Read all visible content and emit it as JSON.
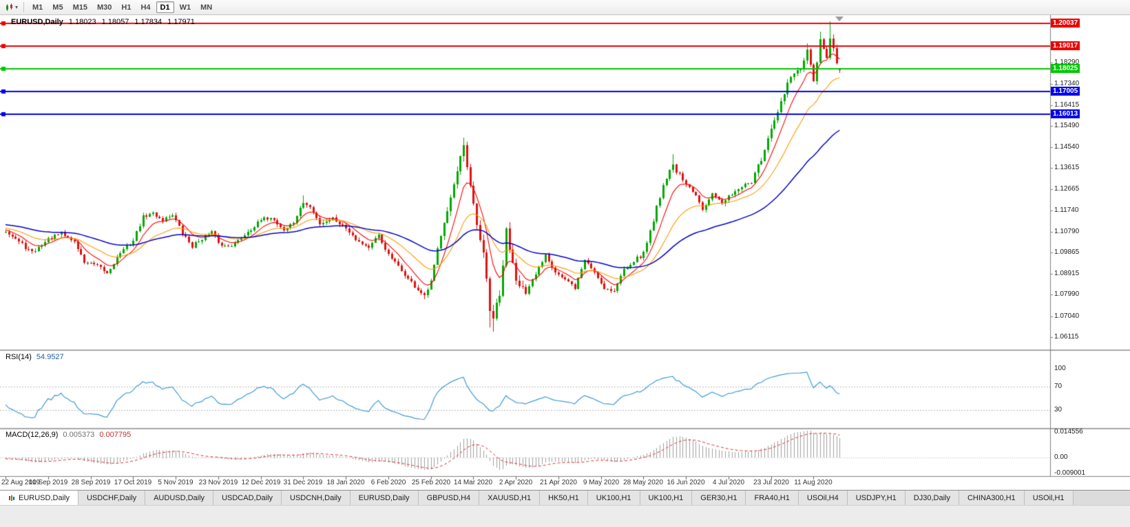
{
  "toolbar": {
    "timeframes": [
      "M1",
      "M5",
      "M15",
      "M30",
      "H1",
      "H4",
      "D1",
      "W1",
      "MN"
    ],
    "selected_timeframe": "D1",
    "icons": {
      "chart_type": "candlestick-chart",
      "caret": "▾"
    }
  },
  "chart_header": {
    "symbol": "EURUSD,Daily",
    "open": "1.18023",
    "high": "1.18057",
    "low": "1.17834",
    "close": "1.17971"
  },
  "chart_data": {
    "type": "candlestick",
    "title": "EURUSD,Daily",
    "ylim": [
      1.0556,
      1.204
    ],
    "y_ticks": [
      "1.18290",
      "1.17340",
      "1.16415",
      "1.15490",
      "1.14540",
      "1.13615",
      "1.12665",
      "1.11740",
      "1.10790",
      "1.09865",
      "1.08915",
      "1.07990",
      "1.07040",
      "1.06115"
    ],
    "x_ticks": [
      "22 Aug 2019",
      "10 Sep 2019",
      "28 Sep 2019",
      "17 Oct 2019",
      "5 Nov 2019",
      "23 Nov 2019",
      "12 Dec 2019",
      "31 Dec 2019",
      "18 Jan 2020",
      "6 Feb 2020",
      "25 Feb 2020",
      "14 Mar 2020",
      "2 Apr 2020",
      "21 Apr 2020",
      "9 May 2020",
      "28 May 2020",
      "16 Jun 2020",
      "4 Jul 2020",
      "23 Jul 2020",
      "11 Aug 2020"
    ],
    "candles_per_x_tick": 13,
    "candles_total": 256,
    "up_color": "#00a800",
    "down_color": "#e01010",
    "close_waypoints": [
      [
        0,
        1.1085
      ],
      [
        4,
        1.1035
      ],
      [
        8,
        1.0985
      ],
      [
        13,
        1.1045
      ],
      [
        17,
        1.107
      ],
      [
        21,
        1.1035
      ],
      [
        24,
        1.0945
      ],
      [
        28,
        1.0925
      ],
      [
        31,
        1.0895
      ],
      [
        35,
        1.0985
      ],
      [
        39,
        1.104
      ],
      [
        42,
        1.1145
      ],
      [
        45,
        1.116
      ],
      [
        48,
        1.113
      ],
      [
        51,
        1.1155
      ],
      [
        54,
        1.107
      ],
      [
        57,
        1.1015
      ],
      [
        60,
        1.105
      ],
      [
        63,
        1.1075
      ],
      [
        66,
        1.1015
      ],
      [
        70,
        1.1025
      ],
      [
        74,
        1.108
      ],
      [
        78,
        1.113
      ],
      [
        81,
        1.1145
      ],
      [
        85,
        1.1085
      ],
      [
        88,
        1.112
      ],
      [
        91,
        1.121
      ],
      [
        93,
        1.1185
      ],
      [
        96,
        1.1115
      ],
      [
        100,
        1.114
      ],
      [
        104,
        1.1095
      ],
      [
        108,
        1.1035
      ],
      [
        111,
        1.101
      ],
      [
        114,
        1.106
      ],
      [
        117,
        1.0975
      ],
      [
        121,
        1.0905
      ],
      [
        125,
        1.0835
      ],
      [
        128,
        1.079
      ],
      [
        130,
        1.0855
      ],
      [
        132,
        1.1
      ],
      [
        134,
        1.1135
      ],
      [
        137,
        1.128
      ],
      [
        140,
        1.145
      ],
      [
        142,
        1.127
      ],
      [
        144,
        1.1105
      ],
      [
        146,
        1.099
      ],
      [
        148,
        1.072
      ],
      [
        149,
        1.07
      ],
      [
        151,
        1.079
      ],
      [
        153,
        1.108
      ],
      [
        156,
        1.088
      ],
      [
        159,
        1.08
      ],
      [
        162,
        1.089
      ],
      [
        165,
        1.098
      ],
      [
        168,
        1.09
      ],
      [
        171,
        1.0865
      ],
      [
        174,
        1.083
      ],
      [
        177,
        1.0955
      ],
      [
        180,
        1.09
      ],
      [
        183,
        1.083
      ],
      [
        186,
        1.0815
      ],
      [
        189,
        1.0915
      ],
      [
        192,
        1.095
      ],
      [
        195,
        1.098
      ],
      [
        198,
        1.1135
      ],
      [
        201,
        1.129
      ],
      [
        204,
        1.1375
      ],
      [
        207,
        1.13
      ],
      [
        210,
        1.1255
      ],
      [
        213,
        1.1185
      ],
      [
        216,
        1.1255
      ],
      [
        219,
        1.12
      ],
      [
        222,
        1.125
      ],
      [
        225,
        1.128
      ],
      [
        228,
        1.13
      ],
      [
        231,
        1.14
      ],
      [
        234,
        1.1525
      ],
      [
        237,
        1.165
      ],
      [
        239,
        1.174
      ],
      [
        241,
        1.178
      ],
      [
        243,
        1.18
      ],
      [
        245,
        1.1875
      ],
      [
        247,
        1.174
      ],
      [
        249,
        1.193
      ],
      [
        251,
        1.184
      ],
      [
        252,
        1.194
      ],
      [
        254,
        1.183
      ],
      [
        255,
        1.17971
      ]
    ],
    "wick_overrides": [
      [
        91,
        "high",
        1.1239
      ],
      [
        128,
        "low",
        1.0778
      ],
      [
        140,
        "high",
        1.1495
      ],
      [
        148,
        "low",
        1.0655
      ],
      [
        149,
        "low",
        1.0636
      ],
      [
        204,
        "high",
        1.1422
      ],
      [
        245,
        "high",
        1.1916
      ],
      [
        249,
        "high",
        1.1966
      ],
      [
        252,
        "high",
        1.2011
      ]
    ],
    "moving_averages": [
      {
        "period": 8,
        "method": "ema",
        "color": "#ff0000"
      },
      {
        "period": 21,
        "method": "ema",
        "color": "#ff9900"
      },
      {
        "period": 55,
        "method": "ema",
        "color": "#0000c8"
      }
    ],
    "hlines": [
      {
        "value": 1.20037,
        "label": "1.20037",
        "color": "#ee0000"
      },
      {
        "value": 1.19017,
        "label": "1.19017",
        "color": "#ee0000"
      },
      {
        "value": 1.18025,
        "label": "1.18025",
        "color": "#00c800"
      },
      {
        "value": 1.17005,
        "label": "1.17005",
        "color": "#0000f0"
      },
      {
        "value": 1.16013,
        "label": "1.16013",
        "color": "#0000f0"
      }
    ],
    "rsi": {
      "label": "RSI(14)",
      "value": "54.9527",
      "period": 14,
      "ticks": [
        100,
        70,
        30
      ],
      "levels": [
        70,
        30
      ],
      "color": "#3f9bd8",
      "range": [
        0,
        130
      ]
    },
    "macd": {
      "label": "MACD(12,26,9)",
      "fast": 12,
      "slow": 26,
      "signal": 9,
      "value_main": "0.005373",
      "value_signal": "0.007795",
      "ticks": [
        "0.014556",
        "0.00",
        "-0.009001"
      ],
      "range": [
        -0.0105,
        0.016
      ],
      "hist_color": "#a0a0a0",
      "signal_color": "#e03030"
    }
  },
  "tabs": {
    "items": [
      {
        "label": "EURUSD,Daily",
        "active": true
      },
      {
        "label": "USDCHF,Daily",
        "active": false
      },
      {
        "label": "AUDUSD,Daily",
        "active": false
      },
      {
        "label": "USDCAD,Daily",
        "active": false
      },
      {
        "label": "USDCNH,Daily",
        "active": false
      },
      {
        "label": "EURUSD,Daily",
        "active": false
      },
      {
        "label": "GBPUSD,H4",
        "active": false
      },
      {
        "label": "XAUUSD,H1",
        "active": false
      },
      {
        "label": "HK50,H1",
        "active": false
      },
      {
        "label": "UK100,H1",
        "active": false
      },
      {
        "label": "UK100,H1",
        "active": false
      },
      {
        "label": "GER30,H1",
        "active": false
      },
      {
        "label": "FRA40,H1",
        "active": false
      },
      {
        "label": "USOil,H4",
        "active": false
      },
      {
        "label": "USDJPY,H1",
        "active": false
      },
      {
        "label": "DJ30,Daily",
        "active": false
      },
      {
        "label": "CHINA300,H1",
        "active": false
      },
      {
        "label": "USOil,H1",
        "active": false
      }
    ]
  }
}
